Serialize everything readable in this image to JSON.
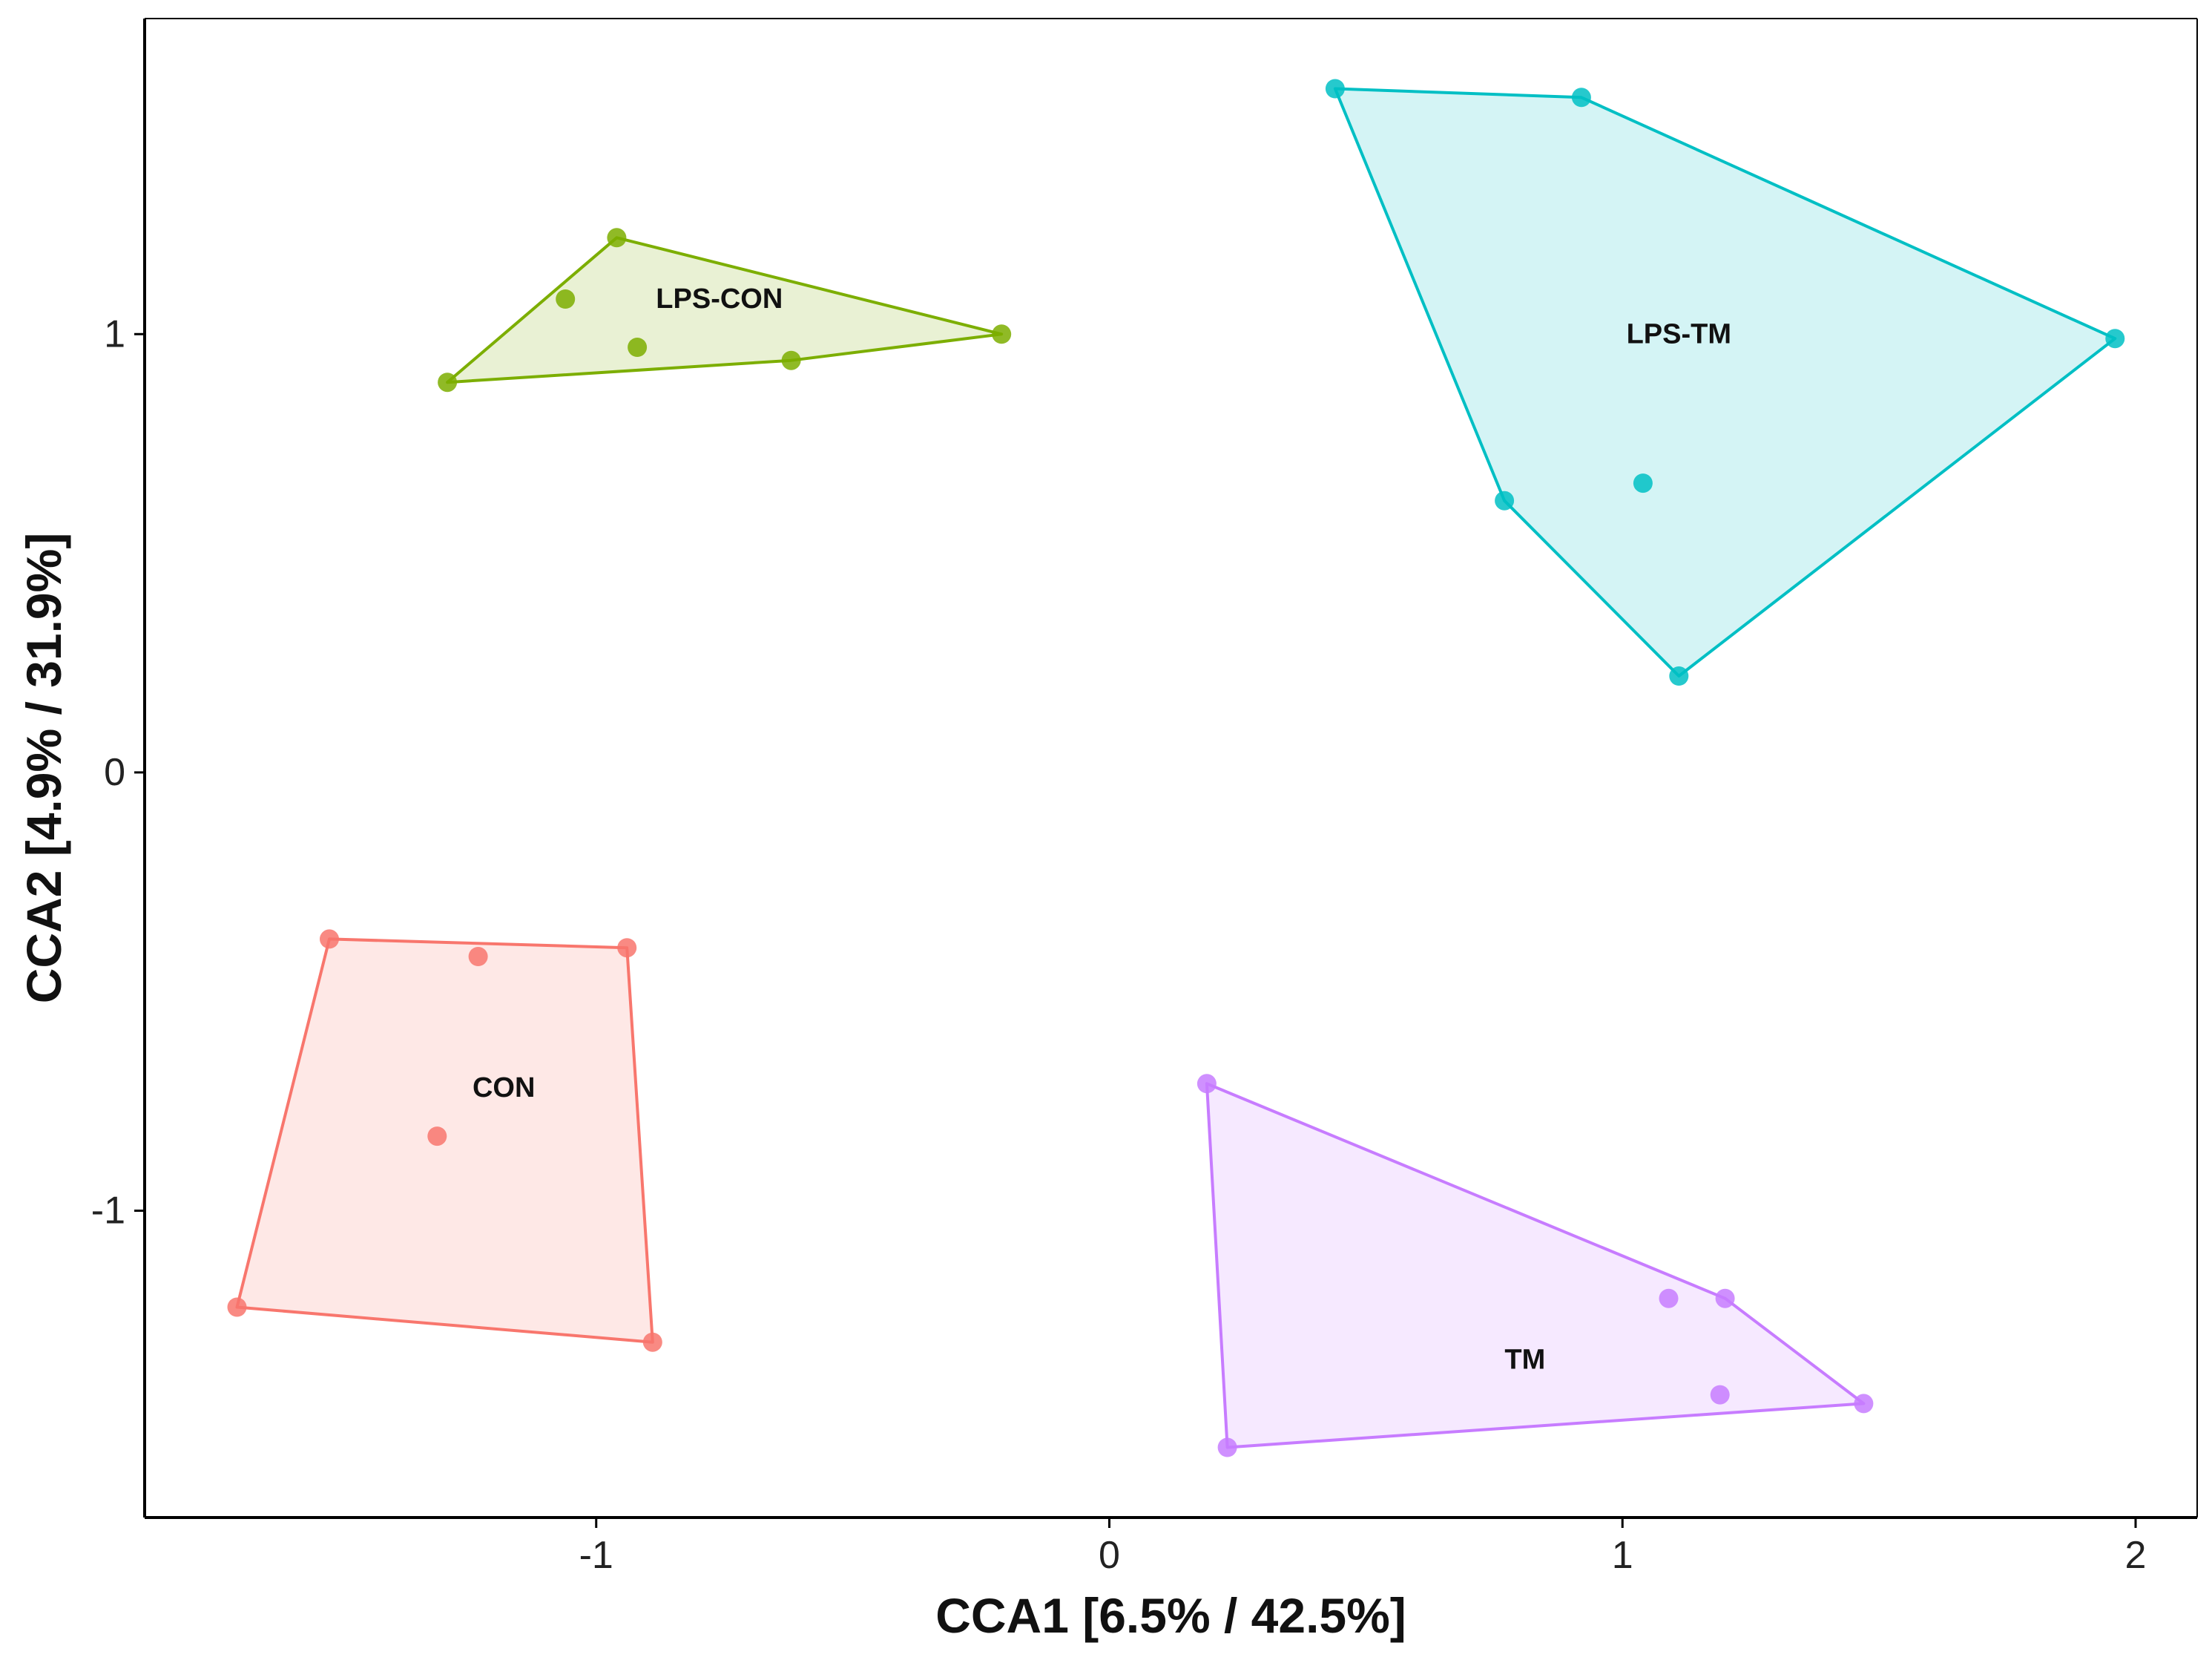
{
  "chart_data": {
    "type": "scatter",
    "title": "",
    "xlabel": "CCA1 [6.5% / 42.5%]",
    "ylabel": "CCA2 [4.9% / 31.9%]",
    "xlim": [
      -1.88,
      2.12
    ],
    "ylim": [
      -1.7,
      1.72
    ],
    "xticks": [
      {
        "value": -1,
        "label": "-1"
      },
      {
        "value": 0,
        "label": "0"
      },
      {
        "value": 1,
        "label": "1"
      },
      {
        "value": 2,
        "label": "2"
      }
    ],
    "yticks": [
      {
        "value": -1,
        "label": "-1"
      },
      {
        "value": 0,
        "label": "0"
      },
      {
        "value": 1,
        "label": "1"
      }
    ],
    "grid": false,
    "legend": "none",
    "series": [
      {
        "name": "LPS-CON",
        "color": "#7CAE00",
        "label_pos": [
          -0.76,
          1.08
        ],
        "points": [
          [
            -1.29,
            0.89
          ],
          [
            -0.96,
            1.22
          ],
          [
            -0.21,
            1.0
          ],
          [
            -0.62,
            0.94
          ],
          [
            -1.06,
            1.08
          ],
          [
            -0.92,
            0.97
          ]
        ],
        "hull": [
          [
            -1.29,
            0.89
          ],
          [
            -0.96,
            1.22
          ],
          [
            -0.21,
            1.0
          ],
          [
            -0.62,
            0.94
          ]
        ]
      },
      {
        "name": "LPS-TM",
        "color": "#00BFC4",
        "label_pos": [
          1.11,
          1.0
        ],
        "points": [
          [
            0.44,
            1.56
          ],
          [
            0.92,
            1.54
          ],
          [
            1.96,
            0.99
          ],
          [
            1.11,
            0.22
          ],
          [
            0.77,
            0.62
          ],
          [
            1.04,
            0.66
          ]
        ],
        "hull": [
          [
            0.44,
            1.56
          ],
          [
            0.92,
            1.54
          ],
          [
            1.96,
            0.99
          ],
          [
            1.11,
            0.22
          ],
          [
            0.77,
            0.62
          ]
        ]
      },
      {
        "name": "CON",
        "color": "#F8766D",
        "label_pos": [
          -1.18,
          -0.72
        ],
        "points": [
          [
            -1.52,
            -0.38
          ],
          [
            -0.94,
            -0.4
          ],
          [
            -0.89,
            -1.3
          ],
          [
            -1.7,
            -1.22
          ],
          [
            -1.23,
            -0.42
          ],
          [
            -1.31,
            -0.83
          ]
        ],
        "hull": [
          [
            -1.52,
            -0.38
          ],
          [
            -0.94,
            -0.4
          ],
          [
            -0.89,
            -1.3
          ],
          [
            -1.7,
            -1.22
          ]
        ]
      },
      {
        "name": "TM",
        "color": "#C77CFF",
        "label_pos": [
          0.81,
          -1.34
        ],
        "points": [
          [
            0.19,
            -0.71
          ],
          [
            1.2,
            -1.2
          ],
          [
            1.47,
            -1.44
          ],
          [
            0.23,
            -1.54
          ],
          [
            1.09,
            -1.2
          ],
          [
            1.19,
            -1.42
          ]
        ],
        "hull": [
          [
            0.19,
            -0.71
          ],
          [
            1.2,
            -1.2
          ],
          [
            1.47,
            -1.44
          ],
          [
            0.23,
            -1.54
          ]
        ]
      }
    ]
  }
}
